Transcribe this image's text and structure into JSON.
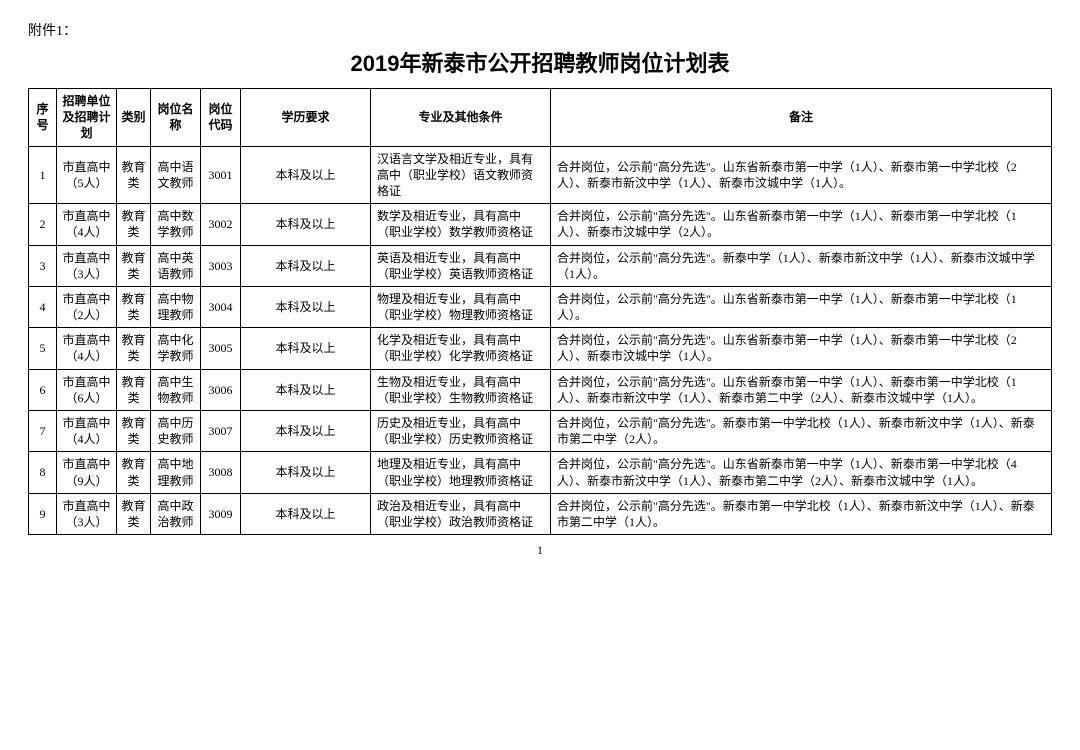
{
  "attachment_label": "附件1：",
  "title": "2019年新泰市公开招聘教师岗位计划表",
  "page_number": "1",
  "columns": [
    "序号",
    "招聘单位及招聘计划",
    "类别",
    "岗位名称",
    "岗位代码",
    "学历要求",
    "专业及其他条件",
    "备注"
  ],
  "rows": [
    {
      "no": "1",
      "unit": "市直高中（5人）",
      "cat": "教育类",
      "post": "高中语文教师",
      "code": "3001",
      "edu": "本科及以上",
      "req": "汉语言文学及相近专业，具有高中（职业学校）语文教师资格证",
      "remark": "合并岗位，公示前\"高分先选\"。山东省新泰市第一中学（1人）、新泰市第一中学北校（2人）、新泰市新汶中学（1人）、新泰市汶城中学（1人）。"
    },
    {
      "no": "2",
      "unit": "市直高中（4人）",
      "cat": "教育类",
      "post": "高中数学教师",
      "code": "3002",
      "edu": "本科及以上",
      "req": "数学及相近专业，具有高中（职业学校）数学教师资格证",
      "remark": "合并岗位，公示前\"高分先选\"。山东省新泰市第一中学（1人）、新泰市第一中学北校（1人）、新泰市汶城中学（2人）。"
    },
    {
      "no": "3",
      "unit": "市直高中（3人）",
      "cat": "教育类",
      "post": "高中英语教师",
      "code": "3003",
      "edu": "本科及以上",
      "req": "英语及相近专业，具有高中（职业学校）英语教师资格证",
      "remark": "合并岗位，公示前\"高分先选\"。新泰中学（1人）、新泰市新汶中学（1人）、新泰市汶城中学（1人）。"
    },
    {
      "no": "4",
      "unit": "市直高中（2人）",
      "cat": "教育类",
      "post": "高中物理教师",
      "code": "3004",
      "edu": "本科及以上",
      "req": "物理及相近专业，具有高中（职业学校）物理教师资格证",
      "remark": "合并岗位，公示前\"高分先选\"。山东省新泰市第一中学（1人）、新泰市第一中学北校（1人）。"
    },
    {
      "no": "5",
      "unit": "市直高中（4人）",
      "cat": "教育类",
      "post": "高中化学教师",
      "code": "3005",
      "edu": "本科及以上",
      "req": "化学及相近专业，具有高中（职业学校）化学教师资格证",
      "remark": "合并岗位，公示前\"高分先选\"。山东省新泰市第一中学（1人）、新泰市第一中学北校（2人）、新泰市汶城中学（1人）。"
    },
    {
      "no": "6",
      "unit": "市直高中（6人）",
      "cat": "教育类",
      "post": "高中生物教师",
      "code": "3006",
      "edu": "本科及以上",
      "req": "生物及相近专业，具有高中（职业学校）生物教师资格证",
      "remark": "合并岗位，公示前\"高分先选\"。山东省新泰市第一中学（1人）、新泰市第一中学北校（1人）、新泰市新汶中学（1人）、新泰市第二中学（2人）、新泰市汶城中学（1人）。"
    },
    {
      "no": "7",
      "unit": "市直高中（4人）",
      "cat": "教育类",
      "post": "高中历史教师",
      "code": "3007",
      "edu": "本科及以上",
      "req": "历史及相近专业，具有高中（职业学校）历史教师资格证",
      "remark": "合并岗位，公示前\"高分先选\"。新泰市第一中学北校（1人）、新泰市新汶中学（1人）、新泰市第二中学（2人）。"
    },
    {
      "no": "8",
      "unit": "市直高中（9人）",
      "cat": "教育类",
      "post": "高中地理教师",
      "code": "3008",
      "edu": "本科及以上",
      "req": "地理及相近专业，具有高中（职业学校）地理教师资格证",
      "remark": "合并岗位，公示前\"高分先选\"。山东省新泰市第一中学（1人）、新泰市第一中学北校（4人）、新泰市新汶中学（1人）、新泰市第二中学（2人）、新泰市汶城中学（1人）。"
    },
    {
      "no": "9",
      "unit": "市直高中（3人）",
      "cat": "教育类",
      "post": "高中政治教师",
      "code": "3009",
      "edu": "本科及以上",
      "req": "政治及相近专业，具有高中（职业学校）政治教师资格证",
      "remark": "合并岗位，公示前\"高分先选\"。新泰市第一中学北校（1人）、新泰市新汶中学（1人）、新泰市第二中学（1人）。"
    }
  ]
}
